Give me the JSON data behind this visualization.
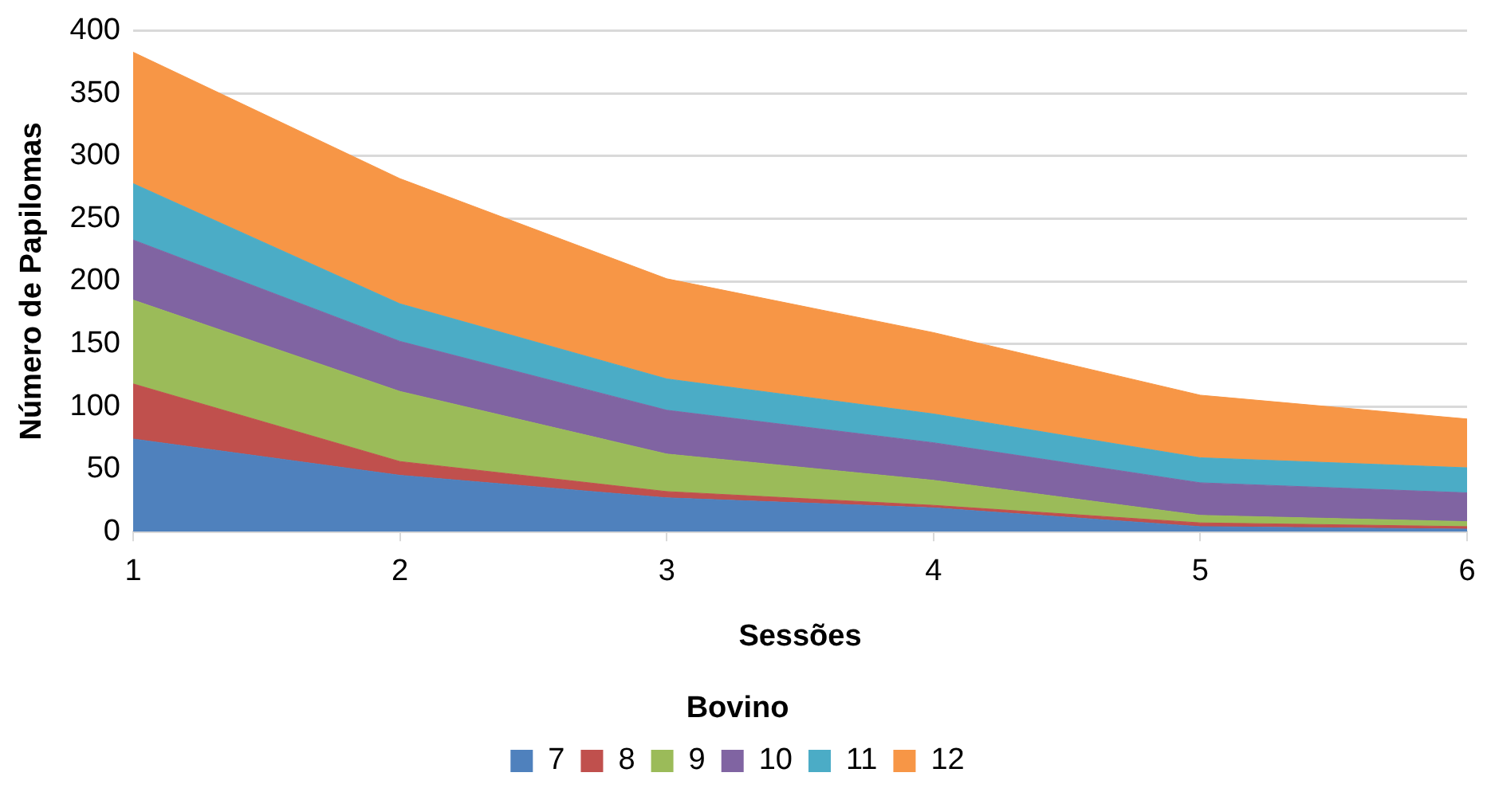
{
  "chart_data": {
    "type": "area",
    "stacked": true,
    "xlabel": "Sessões",
    "ylabel": "Número de Papilomas",
    "legend_title": "Bovino",
    "legend": "bottom",
    "grid": "y",
    "marker": "none",
    "x": [
      1,
      2,
      3,
      4,
      5,
      6
    ],
    "xlim": [
      1,
      6
    ],
    "xticks": [
      1,
      2,
      3,
      4,
      5,
      6
    ],
    "ylim": [
      0,
      400
    ],
    "yticks": [
      0,
      50,
      100,
      150,
      200,
      250,
      300,
      350,
      400
    ],
    "series": [
      {
        "name": "7",
        "color": "#4f81bd",
        "values": [
          74,
          45,
          27,
          19,
          4,
          2
        ]
      },
      {
        "name": "8",
        "color": "#c0504d",
        "values": [
          44,
          11,
          5,
          2,
          3,
          2
        ]
      },
      {
        "name": "9",
        "color": "#9bbb59",
        "values": [
          67,
          56,
          30,
          20,
          6,
          4
        ]
      },
      {
        "name": "10",
        "color": "#8064a2",
        "values": [
          48,
          40,
          35,
          30,
          26,
          23
        ]
      },
      {
        "name": "11",
        "color": "#4bacc6",
        "values": [
          45,
          30,
          25,
          23,
          20,
          20
        ]
      },
      {
        "name": "12",
        "color": "#f79646",
        "values": [
          105,
          100,
          80,
          65,
          50,
          39
        ]
      }
    ]
  }
}
